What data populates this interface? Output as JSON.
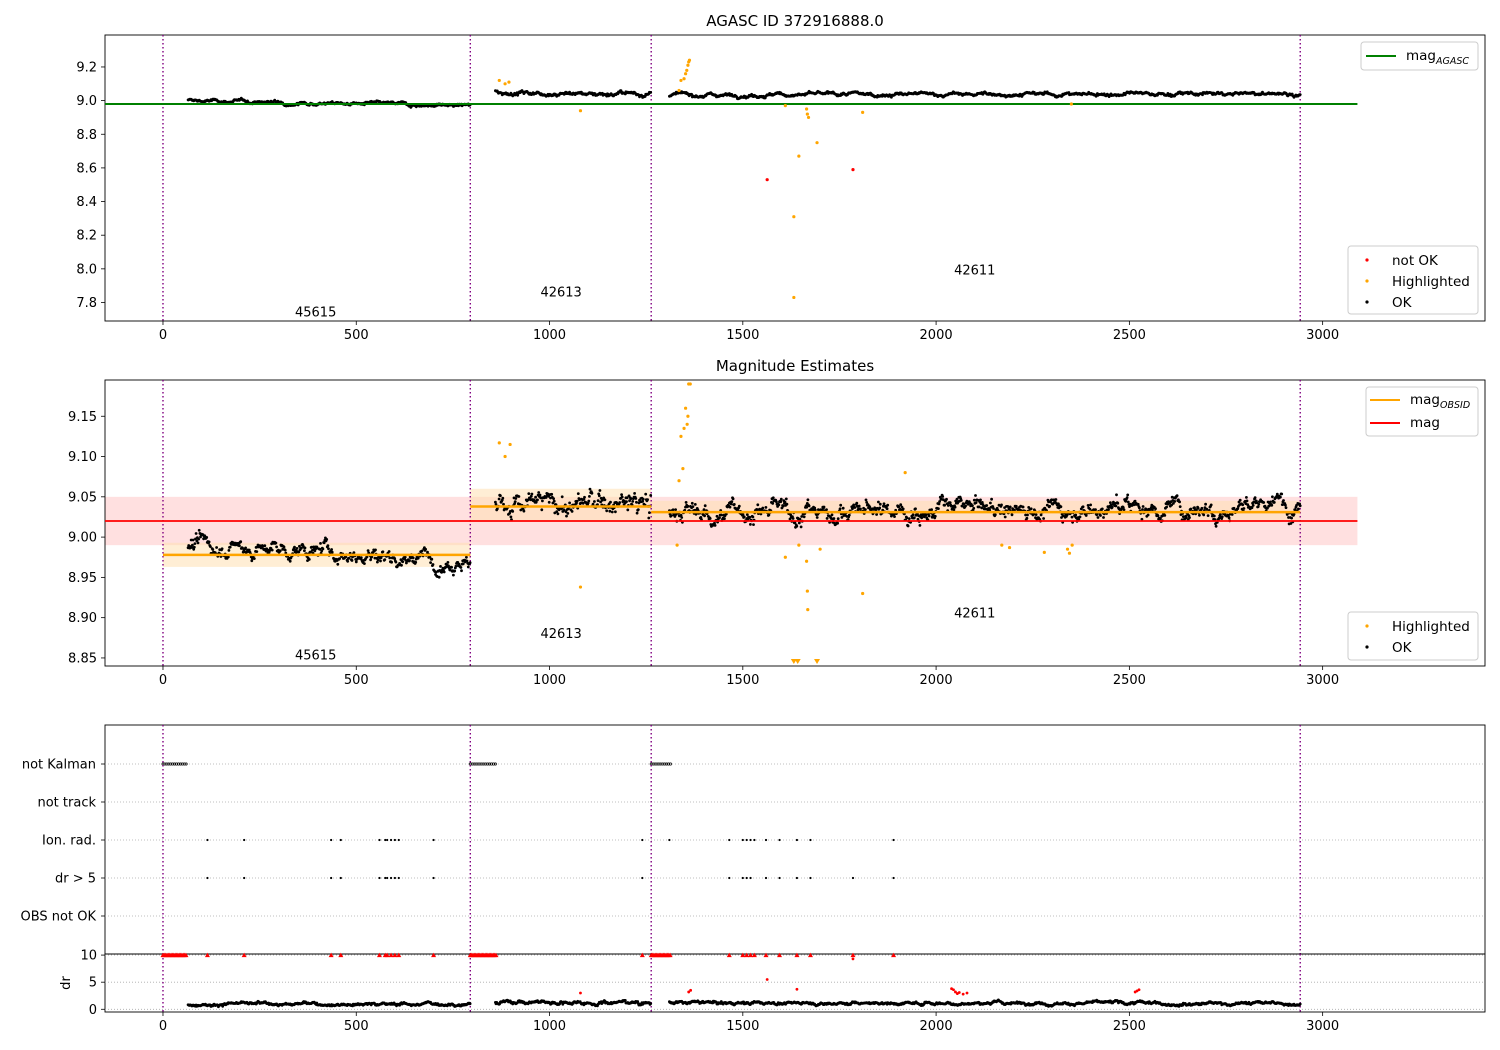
{
  "figure": {
    "panel1_title": "AGASC ID 372916888.0",
    "panel2_title": "Magnitude Estimates"
  },
  "colors": {
    "ok": "#000000",
    "highlighted": "#ffa500",
    "not_ok": "#ff0000",
    "mag_agasc": "#008000",
    "mag_obsid": "#ffa500",
    "mag": "#ff0000",
    "obsid_boundary": "#800080",
    "band_red": "#ffcccc",
    "band_orange": "#ffe0b3"
  },
  "chart_data": [
    {
      "id": "agasc_mag",
      "type": "scatter",
      "title": "AGASC ID 372916888.0",
      "xlabel": "",
      "ylabel": "",
      "xlim": [
        -150,
        3420
      ],
      "ylim": [
        7.69,
        9.39
      ],
      "xticks": [
        0,
        500,
        1000,
        1500,
        2000,
        2500,
        3000
      ],
      "yticks": [
        7.8,
        8.0,
        8.2,
        8.4,
        8.6,
        8.8,
        9.0,
        9.2
      ],
      "ytick_labels": [
        "7.8",
        "8.0",
        "8.2",
        "8.4",
        "8.6",
        "8.8",
        "9.0",
        "9.2"
      ],
      "obsid_boundaries": [
        0,
        795,
        1263,
        2942
      ],
      "obsid_labels": [
        {
          "text": "45615",
          "x": 395,
          "y": 7.74
        },
        {
          "text": "42613",
          "x": 1030,
          "y": 7.86
        },
        {
          "text": "42611",
          "x": 2100,
          "y": 7.99
        }
      ],
      "segments": [
        {
          "x0": 65,
          "x1": 795,
          "y0": 9.0,
          "y1": 8.97,
          "noise": 0.012
        },
        {
          "x0": 860,
          "x1": 1263,
          "y0": 9.05,
          "y1": 9.04,
          "noise": 0.015
        },
        {
          "x0": 1310,
          "x1": 2942,
          "y0": 9.035,
          "y1": 9.04,
          "noise": 0.013
        }
      ],
      "lines": [
        {
          "name": "mag_AGASC",
          "label_main": "mag",
          "label_sub": "AGASC",
          "y": 8.98,
          "x0": -150,
          "x1": 3090,
          "color": "#008000"
        }
      ],
      "highlighted_points": [
        {
          "x": 870,
          "y": 9.12
        },
        {
          "x": 885,
          "y": 9.1
        },
        {
          "x": 895,
          "y": 9.11
        },
        {
          "x": 1080,
          "y": 8.94
        },
        {
          "x": 1335,
          "y": 9.06
        },
        {
          "x": 1340,
          "y": 9.12
        },
        {
          "x": 1348,
          "y": 9.13
        },
        {
          "x": 1352,
          "y": 9.16
        },
        {
          "x": 1355,
          "y": 9.18
        },
        {
          "x": 1358,
          "y": 9.21
        },
        {
          "x": 1360,
          "y": 9.23
        },
        {
          "x": 1362,
          "y": 9.24
        },
        {
          "x": 1632,
          "y": 8.31
        },
        {
          "x": 1632,
          "y": 7.83
        },
        {
          "x": 1645,
          "y": 8.67
        },
        {
          "x": 1665,
          "y": 8.95
        },
        {
          "x": 1667,
          "y": 8.92
        },
        {
          "x": 1670,
          "y": 8.9
        },
        {
          "x": 1692,
          "y": 8.75
        },
        {
          "x": 1810,
          "y": 8.93
        },
        {
          "x": 2350,
          "y": 8.98
        },
        {
          "x": 1610,
          "y": 8.97
        }
      ],
      "not_ok_points": [
        {
          "x": 1563,
          "y": 8.53
        },
        {
          "x": 1785,
          "y": 8.59
        }
      ],
      "legend_top": [
        {
          "name": "mag_AGASC",
          "label_main": "mag",
          "label_sub": "AGASC"
        }
      ],
      "legend_bottom": [
        {
          "name": "not OK",
          "label": "not OK"
        },
        {
          "name": "Highlighted",
          "label": "Highlighted"
        },
        {
          "name": "OK",
          "label": "OK"
        }
      ]
    },
    {
      "id": "mag_estimates",
      "type": "scatter",
      "title": "Magnitude Estimates",
      "xlabel": "",
      "ylabel": "",
      "xlim": [
        -150,
        3420
      ],
      "ylim": [
        8.84,
        9.195
      ],
      "xticks": [
        0,
        500,
        1000,
        1500,
        2000,
        2500,
        3000
      ],
      "yticks": [
        8.85,
        8.9,
        8.95,
        9.0,
        9.05,
        9.1,
        9.15
      ],
      "ytick_labels": [
        "8.85",
        "8.90",
        "8.95",
        "9.00",
        "9.05",
        "9.10",
        "9.15"
      ],
      "obsid_boundaries": [
        0,
        795,
        1263,
        2942
      ],
      "obsid_labels": [
        {
          "text": "45615",
          "x": 395,
          "y": 8.853
        },
        {
          "text": "42613",
          "x": 1030,
          "y": 8.88
        },
        {
          "text": "42611",
          "x": 2100,
          "y": 8.905
        }
      ],
      "segments": [
        {
          "x0": 65,
          "x1": 795,
          "y0": 8.99,
          "y1": 8.972,
          "noise": 0.012
        },
        {
          "x0": 860,
          "x1": 1263,
          "y0": 9.04,
          "y1": 9.04,
          "noise": 0.018
        },
        {
          "x0": 1310,
          "x1": 2942,
          "y0": 9.03,
          "y1": 9.04,
          "noise": 0.014
        }
      ],
      "mag": {
        "name": "mag",
        "label": "mag",
        "value": 9.02,
        "band": [
          8.99,
          9.05
        ],
        "x0": -150,
        "x1": 3090
      },
      "mag_obsid": [
        {
          "x0": 0,
          "x1": 795,
          "value": 8.978,
          "band": [
            8.963,
            8.993
          ]
        },
        {
          "x0": 795,
          "x1": 1263,
          "value": 9.038,
          "band": [
            9.02,
            9.06
          ]
        },
        {
          "x0": 1263,
          "x1": 2942,
          "value": 9.031,
          "band": [
            9.02,
            9.045
          ]
        }
      ],
      "highlighted_points": [
        {
          "x": 870,
          "y": 9.117
        },
        {
          "x": 885,
          "y": 9.1
        },
        {
          "x": 898,
          "y": 9.115
        },
        {
          "x": 1080,
          "y": 8.938
        },
        {
          "x": 1330,
          "y": 8.99
        },
        {
          "x": 1335,
          "y": 9.07
        },
        {
          "x": 1340,
          "y": 9.125
        },
        {
          "x": 1345,
          "y": 9.085
        },
        {
          "x": 1348,
          "y": 9.135
        },
        {
          "x": 1352,
          "y": 9.16
        },
        {
          "x": 1356,
          "y": 9.14
        },
        {
          "x": 1358,
          "y": 9.15
        },
        {
          "x": 1360,
          "y": 9.19
        },
        {
          "x": 1364,
          "y": 9.19
        },
        {
          "x": 1610,
          "y": 8.975
        },
        {
          "x": 1645,
          "y": 8.99
        },
        {
          "x": 1665,
          "y": 8.97
        },
        {
          "x": 1667,
          "y": 8.933
        },
        {
          "x": 1668,
          "y": 8.91
        },
        {
          "x": 1700,
          "y": 8.985
        },
        {
          "x": 1810,
          "y": 8.93
        },
        {
          "x": 2170,
          "y": 8.99
        },
        {
          "x": 2190,
          "y": 8.987
        },
        {
          "x": 2280,
          "y": 8.981
        },
        {
          "x": 2340,
          "y": 8.985
        },
        {
          "x": 2345,
          "y": 8.98
        },
        {
          "x": 2352,
          "y": 8.99
        },
        {
          "x": 1920,
          "y": 9.08
        }
      ],
      "clipped_points": [
        {
          "x": 1632,
          "y": 8.845
        },
        {
          "x": 1642,
          "y": 8.845
        },
        {
          "x": 1692,
          "y": 8.845
        }
      ],
      "legend_top": [
        {
          "name": "mag_OBSID",
          "label_main": "mag",
          "label_sub": "OBSID"
        },
        {
          "name": "mag",
          "label": "mag"
        }
      ],
      "legend_bottom": [
        {
          "name": "Highlighted",
          "label": "Highlighted"
        },
        {
          "name": "OK",
          "label": "OK"
        }
      ]
    },
    {
      "id": "flags",
      "type": "scatter",
      "title": "",
      "xlim": [
        -150,
        3420
      ],
      "rows": [
        "not Kalman",
        "not track",
        "Ion. rad.",
        "dr > 5",
        "OBS not OK"
      ],
      "obsid_boundaries": [
        0,
        795,
        1263,
        2942
      ],
      "flag_points": {
        "not Kalman": {
          "ranges": [
            [
              0,
              62
            ],
            [
              795,
              862
            ],
            [
              1263,
              1313
            ]
          ]
        },
        "not track": {
          "ranges": []
        },
        "Ion. rad.": {
          "points": [
            115,
            210,
            435,
            460,
            560,
            575,
            580,
            590,
            600,
            610,
            700,
            1240,
            1310,
            1465,
            1500,
            1510,
            1520,
            1530,
            1560,
            1595,
            1640,
            1675,
            1890
          ]
        },
        "dr > 5": {
          "points": [
            115,
            210,
            435,
            460,
            560,
            575,
            580,
            590,
            600,
            610,
            700,
            1240,
            1465,
            1500,
            1510,
            1520,
            1560,
            1595,
            1640,
            1675,
            1785,
            1890
          ]
        },
        "OBS not OK": {
          "points": []
        }
      }
    },
    {
      "id": "dr",
      "type": "scatter",
      "title": "",
      "xlabel": "",
      "ylabel": "dr",
      "xlim": [
        -150,
        3420
      ],
      "ylim": [
        -0.5,
        10.2
      ],
      "xticks": [
        0,
        500,
        1000,
        1500,
        2000,
        2500,
        3000
      ],
      "yticks": [
        0,
        5,
        10
      ],
      "ytick_labels": [
        "0",
        "5",
        "10"
      ],
      "obsid_boundaries": [
        0,
        795,
        1263,
        2942
      ],
      "segments": [
        {
          "x0": 65,
          "x1": 795,
          "y0": 1.0,
          "y1": 1.0,
          "noise": 0.35
        },
        {
          "x0": 860,
          "x1": 1263,
          "y0": 1.4,
          "y1": 1.3,
          "noise": 0.45
        },
        {
          "x0": 1310,
          "x1": 2942,
          "y0": 1.2,
          "y1": 1.1,
          "noise": 0.35
        }
      ],
      "capped_ranges": [
        [
          0,
          62
        ],
        [
          795,
          862
        ],
        [
          1263,
          1313
        ]
      ],
      "capped_points": [
        115,
        210,
        435,
        460,
        560,
        575,
        580,
        590,
        600,
        610,
        700,
        1240,
        1465,
        1500,
        1510,
        1520,
        1530,
        1560,
        1595,
        1640,
        1675,
        1785,
        1890
      ],
      "red_points": [
        {
          "x": 1563,
          "y": 5.5
        },
        {
          "x": 1785,
          "y": 9.3
        },
        {
          "x": 1360,
          "y": 3.2
        },
        {
          "x": 1365,
          "y": 3.5
        },
        {
          "x": 2040,
          "y": 3.8
        },
        {
          "x": 2045,
          "y": 3.6
        },
        {
          "x": 2050,
          "y": 3.2
        },
        {
          "x": 2055,
          "y": 2.9
        },
        {
          "x": 2060,
          "y": 3.1
        },
        {
          "x": 2070,
          "y": 2.8
        },
        {
          "x": 2080,
          "y": 3.0
        },
        {
          "x": 2515,
          "y": 3.2
        },
        {
          "x": 2520,
          "y": 3.4
        },
        {
          "x": 2525,
          "y": 3.6
        },
        {
          "x": 1080,
          "y": 3.0
        },
        {
          "x": 1640,
          "y": 3.7
        }
      ]
    }
  ]
}
